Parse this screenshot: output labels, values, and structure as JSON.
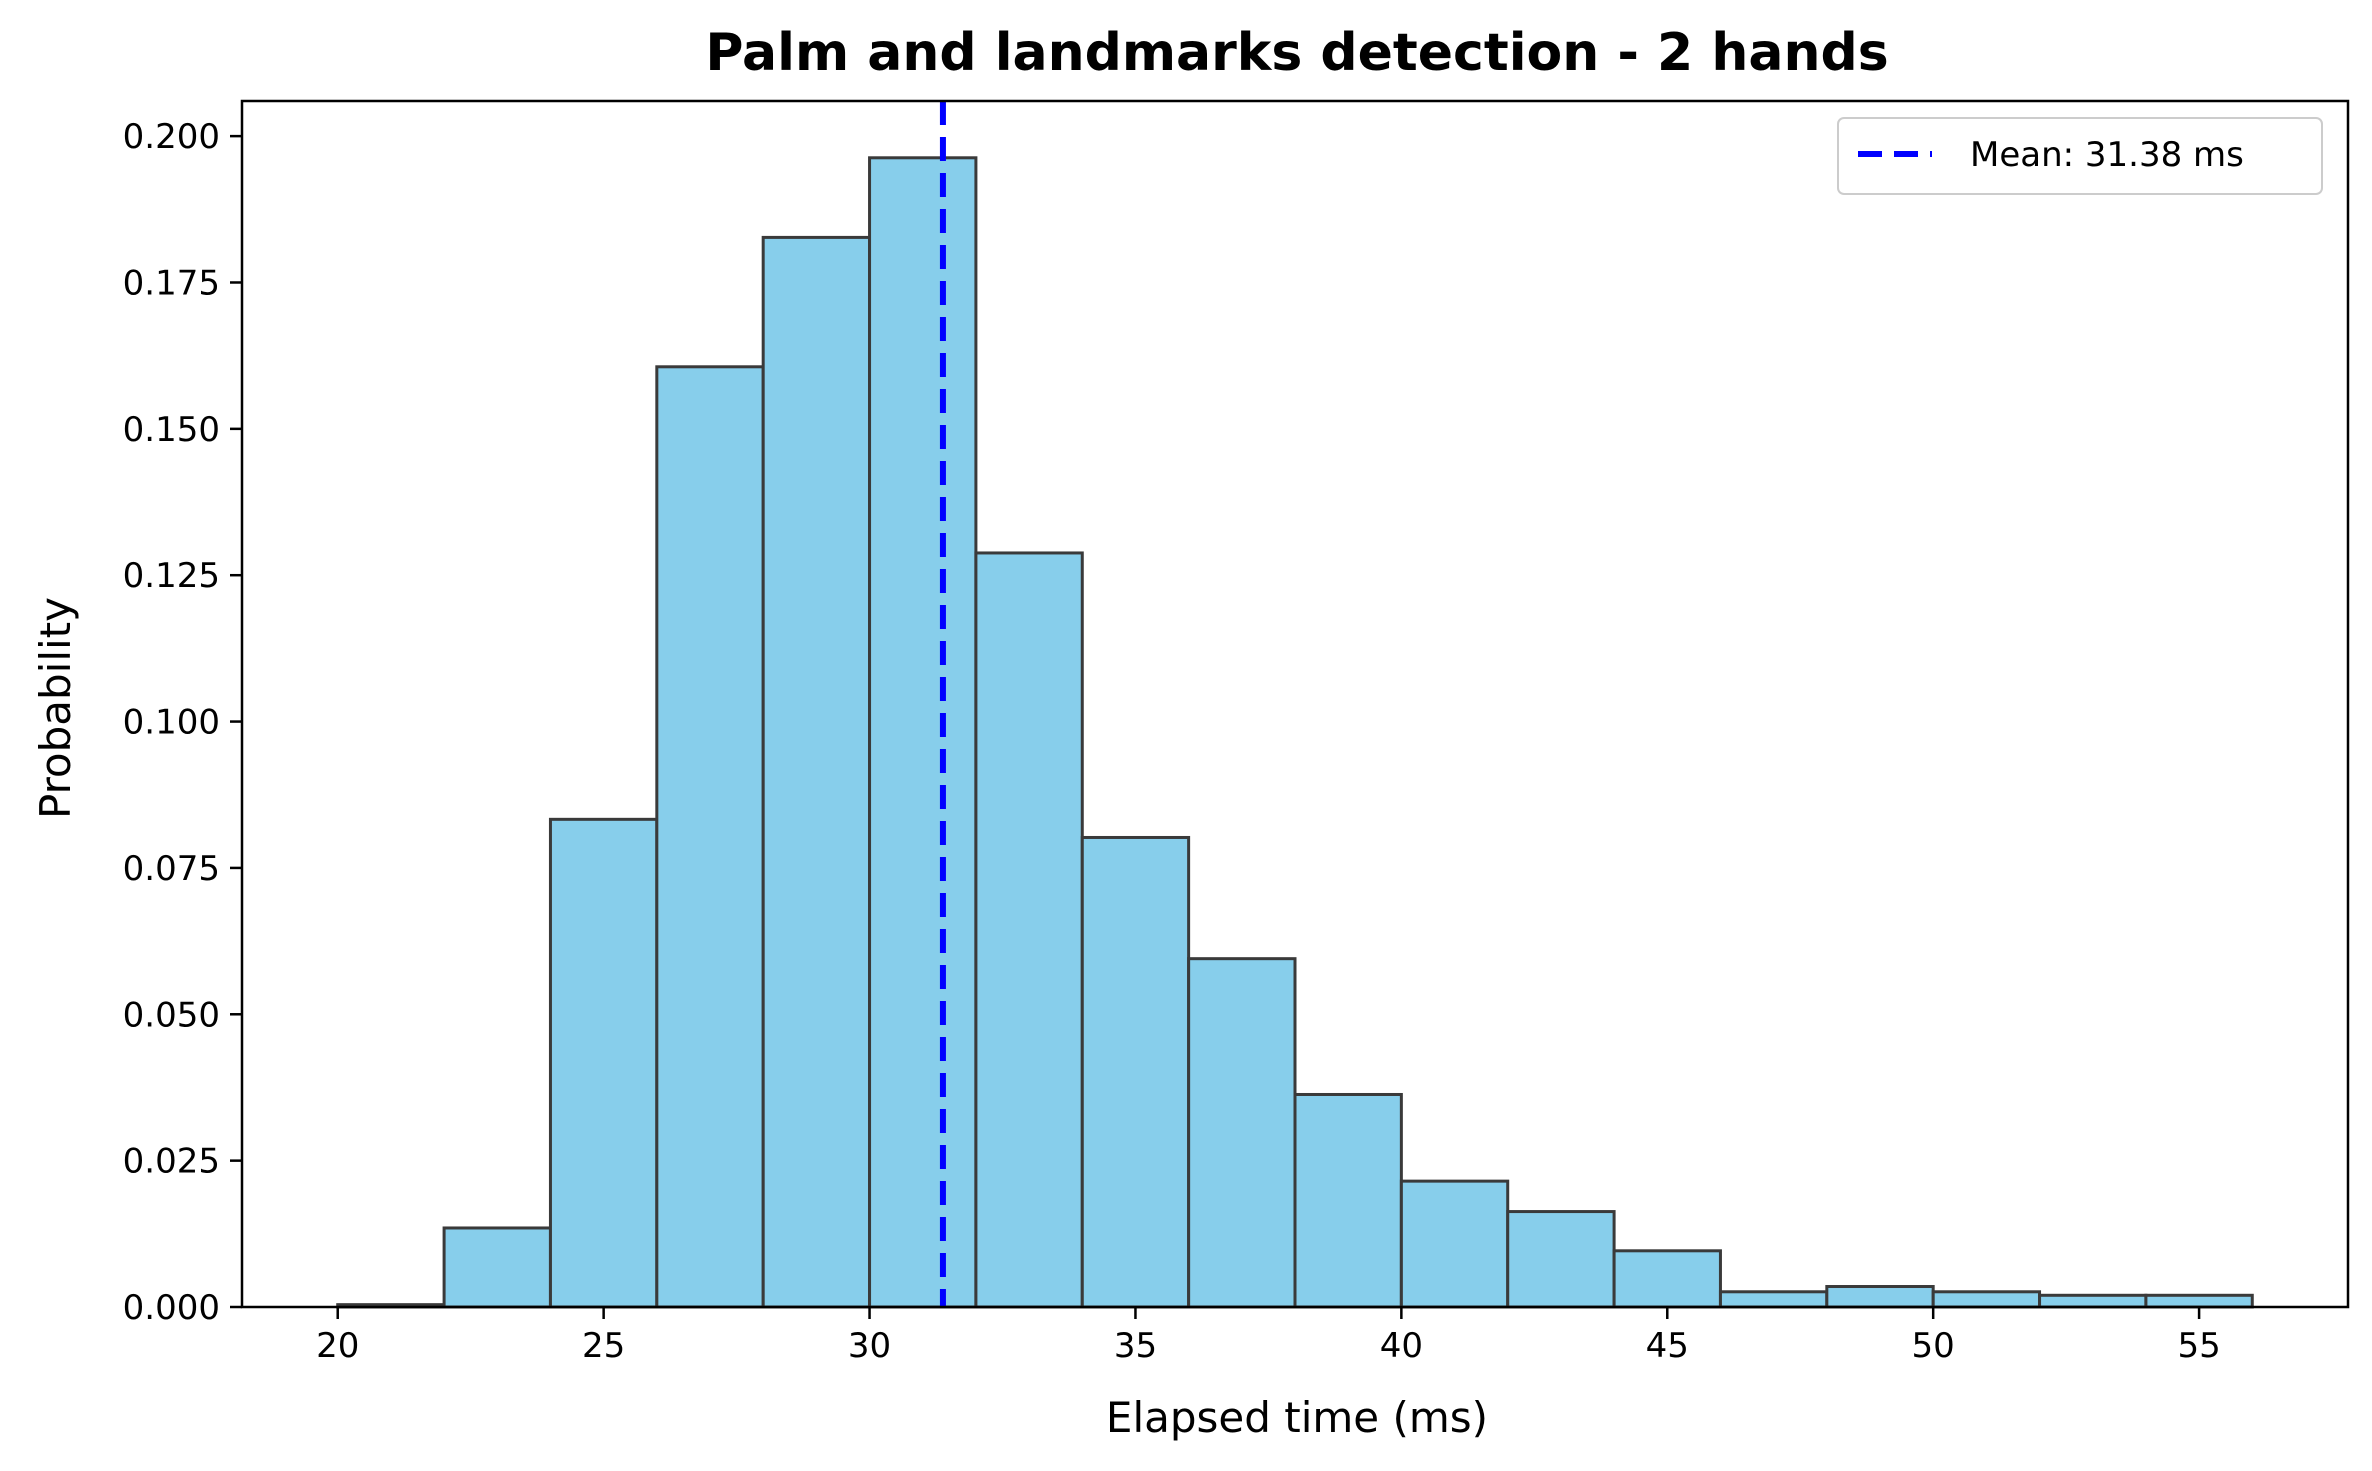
{
  "chart_data": {
    "type": "bar",
    "title": "Palm and landmarks detection - 2 hands",
    "xlabel": "Elapsed time (ms)",
    "ylabel": "Probability",
    "xlim": [
      18.2,
      57.8
    ],
    "ylim": [
      0,
      0.206
    ],
    "xticks": [
      20,
      25,
      30,
      35,
      40,
      45,
      50,
      55
    ],
    "xtick_labels": [
      "20",
      "25",
      "30",
      "35",
      "40",
      "45",
      "50",
      "55"
    ],
    "yticks": [
      0.0,
      0.025,
      0.05,
      0.075,
      0.1,
      0.125,
      0.15,
      0.175,
      0.2
    ],
    "ytick_labels": [
      "0.000",
      "0.025",
      "0.050",
      "0.075",
      "0.100",
      "0.125",
      "0.150",
      "0.175",
      "0.200"
    ],
    "bins": [
      {
        "start": 20,
        "end": 22,
        "value": 0.0004
      },
      {
        "start": 22,
        "end": 24,
        "value": 0.0135
      },
      {
        "start": 24,
        "end": 26,
        "value": 0.0833
      },
      {
        "start": 26,
        "end": 28,
        "value": 0.1606
      },
      {
        "start": 28,
        "end": 30,
        "value": 0.1827
      },
      {
        "start": 30,
        "end": 32,
        "value": 0.1963
      },
      {
        "start": 32,
        "end": 34,
        "value": 0.1288
      },
      {
        "start": 34,
        "end": 36,
        "value": 0.0802
      },
      {
        "start": 36,
        "end": 38,
        "value": 0.0595
      },
      {
        "start": 38,
        "end": 40,
        "value": 0.0363
      },
      {
        "start": 40,
        "end": 42,
        "value": 0.0215
      },
      {
        "start": 42,
        "end": 44,
        "value": 0.0163
      },
      {
        "start": 44,
        "end": 46,
        "value": 0.0096
      },
      {
        "start": 46,
        "end": 48,
        "value": 0.0026
      },
      {
        "start": 48,
        "end": 50,
        "value": 0.0035
      },
      {
        "start": 50,
        "end": 52,
        "value": 0.0026
      },
      {
        "start": 52,
        "end": 54,
        "value": 0.002
      },
      {
        "start": 54,
        "end": 56,
        "value": 0.002
      }
    ],
    "mean_line": {
      "value": 31.38,
      "label": "Mean: 31.38 ms"
    },
    "grid": false,
    "legend_position": "top-right"
  },
  "colors": {
    "bar_fill": "#87CEEB",
    "bar_edge": "#3a3a3a",
    "mean_line": "#0000ff",
    "axis": "#000000"
  }
}
